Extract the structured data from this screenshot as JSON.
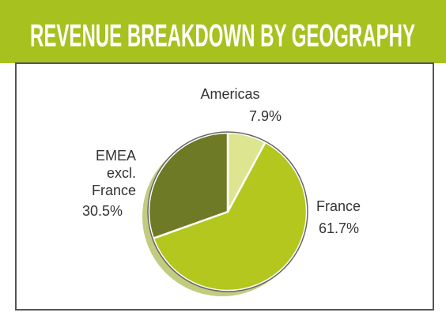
{
  "chart_data": {
    "type": "pie",
    "title": "REVENUE BREAKDOWN BY GEOGRAPHY",
    "categories": [
      "Americas",
      "France",
      "EMEA excl. France"
    ],
    "values": [
      7.9,
      61.7,
      30.5
    ],
    "value_labels": [
      "7.9%",
      "61.7%",
      "30.5%"
    ],
    "colors": [
      "#dde590",
      "#b4c71e",
      "#6f7a26"
    ],
    "header_color": "#a7c11f"
  }
}
